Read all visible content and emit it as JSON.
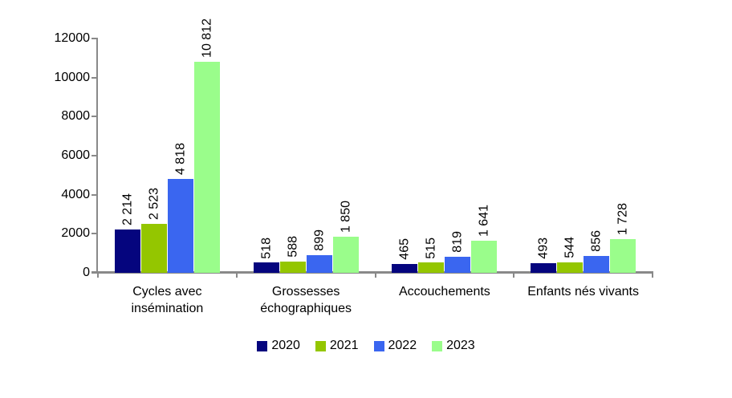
{
  "chart": {
    "background": "#ffffff",
    "axis_color": "#898989",
    "text_color": "#000000"
  },
  "chart_data": {
    "type": "bar",
    "title": "",
    "xlabel": "",
    "ylabel": "",
    "categories": [
      "Cycles avec insémination",
      "Grossesses échographiques",
      "Accouchements",
      "Enfants nés vivants"
    ],
    "series": [
      {
        "name": "2020",
        "color": "#05057e",
        "values": [
          2214,
          518,
          465,
          493
        ],
        "labels": [
          "2 214",
          "518",
          "465",
          "493"
        ]
      },
      {
        "name": "2021",
        "color": "#94c600",
        "values": [
          2523,
          588,
          515,
          544
        ],
        "labels": [
          "2 523",
          "588",
          "515",
          "544"
        ]
      },
      {
        "name": "2022",
        "color": "#3a66f0",
        "values": [
          4818,
          899,
          819,
          856
        ],
        "labels": [
          "4 818",
          "899",
          "819",
          "856"
        ]
      },
      {
        "name": "2023",
        "color": "#9afd8b",
        "values": [
          10812,
          1850,
          1641,
          1728
        ],
        "labels": [
          "10 812",
          "1 850",
          "1 641",
          "1 728"
        ]
      }
    ],
    "ylim": [
      0,
      12000
    ],
    "yticks": [
      0,
      2000,
      4000,
      6000,
      8000,
      10000,
      12000
    ],
    "grid": false,
    "legend_position": "bottom",
    "value_labels_rotated": true
  }
}
